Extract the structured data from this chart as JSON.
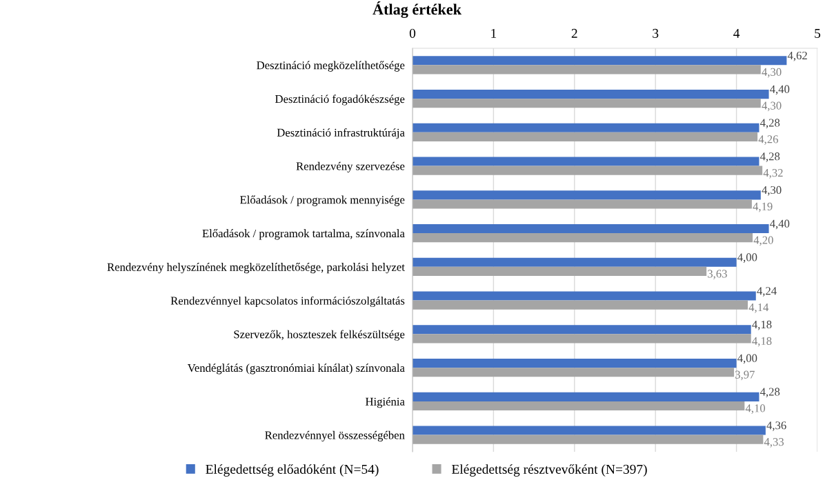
{
  "chart_data": {
    "type": "bar",
    "orientation": "horizontal",
    "title": "Átlag értékek",
    "categories": [
      "Desztináció megközelíthetősége",
      "Desztináció fogadókészsége",
      "Desztináció infrastruktúrája",
      "Rendezvény szervezése",
      "Előadások / programok mennyisége",
      "Előadások / programok tartalma, színvonala",
      "Rendezvény helyszínének megközelíthetősége, parkolási helyzet",
      "Rendezvénnyel kapcsolatos információszolgáltatás",
      "Szervezők, hoszteszek felkészültsége",
      "Vendéglátás (gasztronómiai kínálat) színvonala",
      "Higiénia",
      "Rendezvénnyel összességében"
    ],
    "series": [
      {
        "name": "Elégedettség előadóként (N=54)",
        "color": "#4472c4",
        "values": [
          4.62,
          4.4,
          4.28,
          4.28,
          4.3,
          4.4,
          4.0,
          4.24,
          4.18,
          4.0,
          4.28,
          4.36
        ],
        "value_labels": [
          "4,62",
          "4,40",
          "4,28",
          "4,28",
          "4,30",
          "4,40",
          "4,00",
          "4,24",
          "4,18",
          "4,00",
          "4,28",
          "4,36"
        ]
      },
      {
        "name": "Elégedettség résztvevőként (N=397)",
        "color": "#a5a5a5",
        "values": [
          4.3,
          4.3,
          4.26,
          4.32,
          4.19,
          4.2,
          3.63,
          4.14,
          4.18,
          3.97,
          4.1,
          4.33
        ],
        "value_labels": [
          "4,30",
          "4,30",
          "4,26",
          "4,32",
          "4,19",
          "4,20",
          "3,63",
          "4,14",
          "4,18",
          "3,97",
          "4,10",
          "4,33"
        ]
      }
    ],
    "xlim": [
      0,
      5
    ],
    "xticks": [
      0,
      1,
      2,
      3,
      4,
      5
    ],
    "grid": "x",
    "legend": "bottom"
  }
}
